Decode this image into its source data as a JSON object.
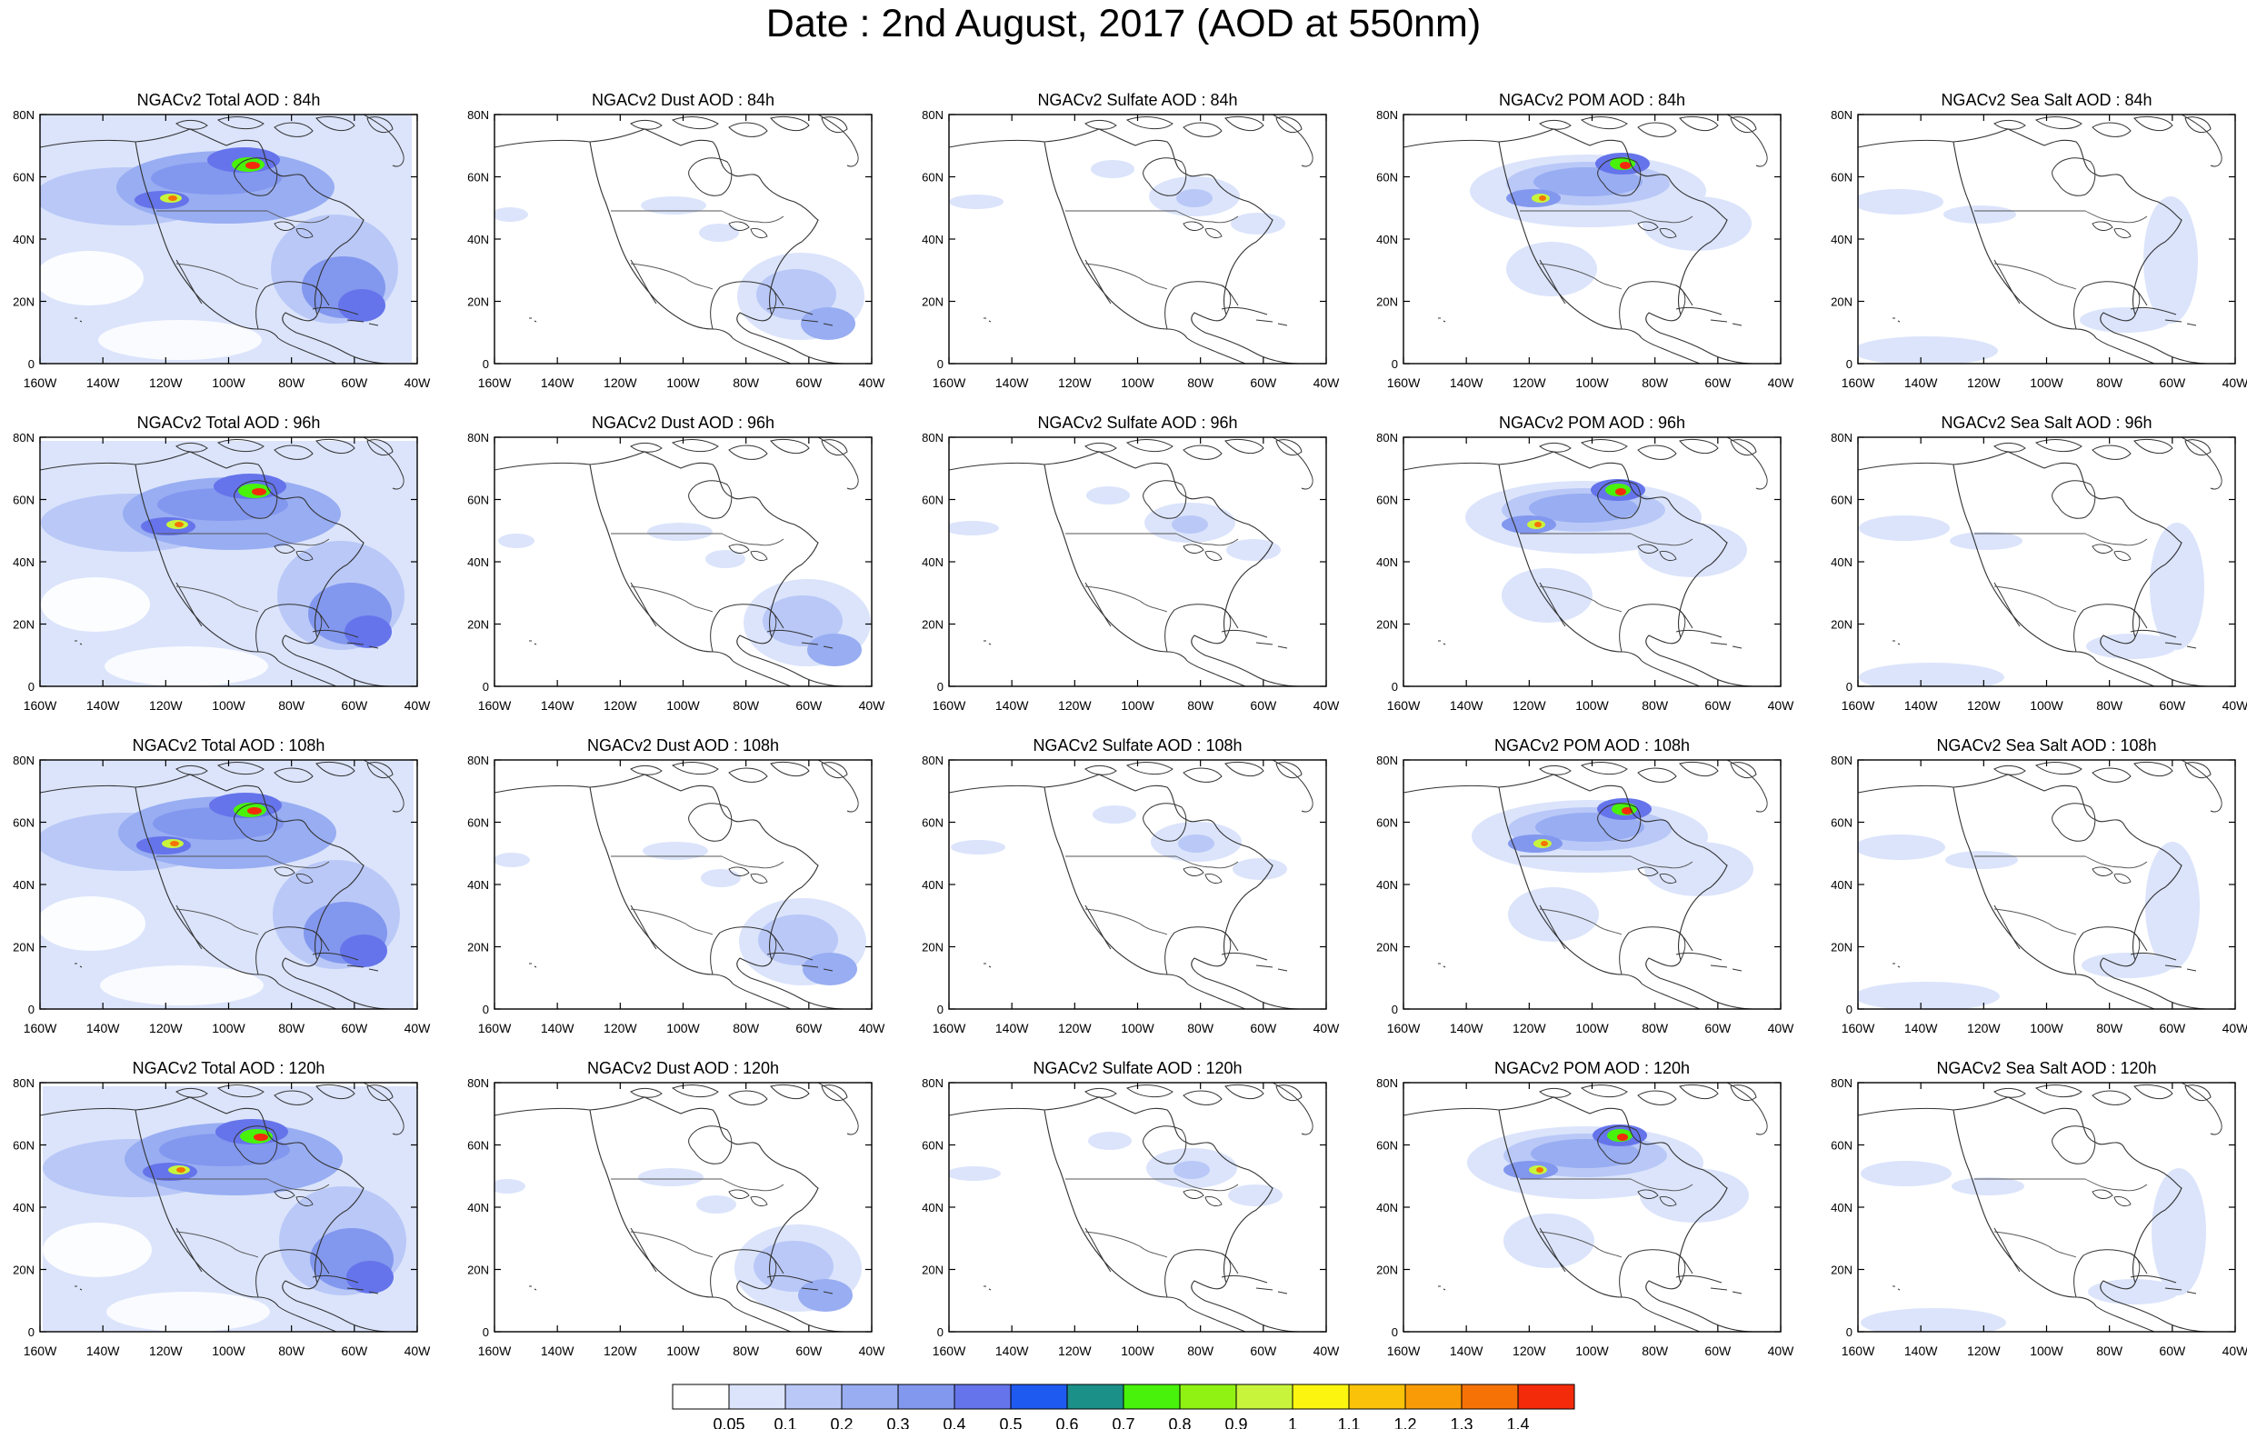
{
  "title": "Date : 2nd August, 2017 (AOD at 550nm)",
  "grid": {
    "columns": [
      "Total",
      "Dust",
      "Sulfate",
      "POM",
      "Sea Salt"
    ],
    "rows": [
      "84h",
      "96h",
      "108h",
      "120h"
    ]
  },
  "panels": [
    [
      "NGACv2 Total AOD : 84h",
      "NGACv2 Dust AOD : 84h",
      "NGACv2 Sulfate AOD : 84h",
      "NGACv2 POM AOD : 84h",
      "NGACv2 Sea Salt AOD : 84h"
    ],
    [
      "NGACv2 Total AOD : 96h",
      "NGACv2 Dust AOD : 96h",
      "NGACv2 Sulfate AOD : 96h",
      "NGACv2 POM AOD : 96h",
      "NGACv2 Sea Salt AOD : 96h"
    ],
    [
      "NGACv2 Total AOD : 108h",
      "NGACv2 Dust AOD : 108h",
      "NGACv2 Sulfate AOD : 108h",
      "NGACv2 POM AOD : 108h",
      "NGACv2 Sea Salt AOD : 108h"
    ],
    [
      "NGACv2 Total AOD : 120h",
      "NGACv2 Dust AOD : 120h",
      "NGACv2 Sulfate AOD : 120h",
      "NGACv2 POM AOD : 120h",
      "NGACv2 Sea Salt  AOD : 120h"
    ]
  ],
  "axes": {
    "lat_ticks": [
      "0",
      "20N",
      "40N",
      "60N",
      "80N"
    ],
    "lat_values": [
      0,
      20,
      40,
      60,
      80
    ],
    "lon_ticks": [
      "160W",
      "140W",
      "120W",
      "100W",
      "80W",
      "60W",
      "40W"
    ],
    "lon_values": [
      -160,
      -140,
      -120,
      -100,
      -80,
      -60,
      -40
    ],
    "lon_range": [
      -160,
      -40
    ],
    "lat_range": [
      0,
      80
    ]
  },
  "colorbar": {
    "labels": [
      "0.05",
      "0.1",
      "0.2",
      "0.3",
      "0.4",
      "0.5",
      "0.6",
      "0.7",
      "0.8",
      "0.9",
      "1",
      "1.1",
      "1.2",
      "1.3",
      "1.4"
    ],
    "colors": [
      "#ffffff",
      "#dbe4fb",
      "#b9c8f7",
      "#98adf2",
      "#8297ee",
      "#6574ea",
      "#1f5af0",
      "#1a9088",
      "#48f20a",
      "#8ff212",
      "#c8f53c",
      "#fbf510",
      "#fac30a",
      "#f99b07",
      "#f77206",
      "#f42b0b"
    ]
  },
  "colors": {
    "land_line": "#333333",
    "aod_low": "#dbe4fb",
    "aod_mid": "#98adf2",
    "aod_high": "#6574ea"
  }
}
